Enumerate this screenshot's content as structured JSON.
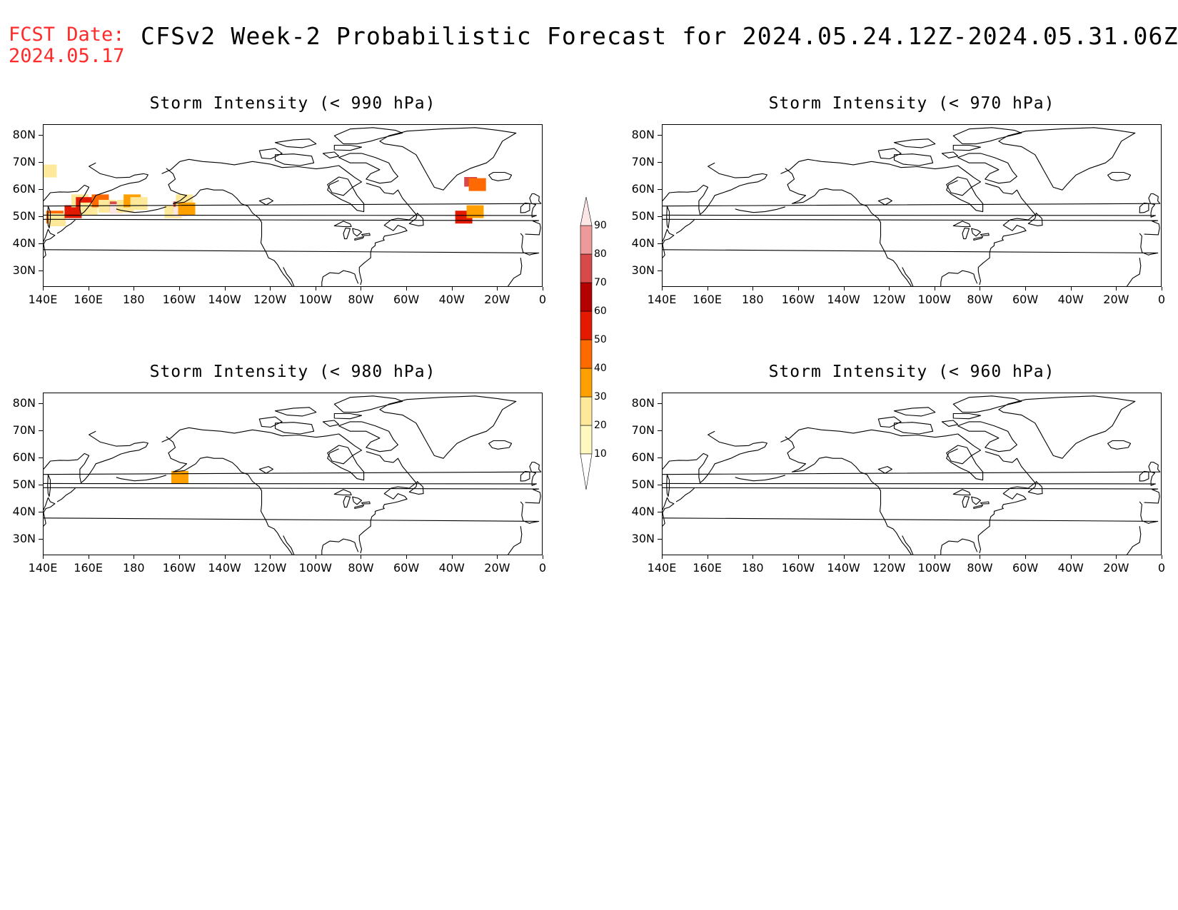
{
  "header": {
    "fcst_label": "FCST Date:",
    "fcst_date": "2024.05.17",
    "title": "CFSv2 Week-2 Probabilistic Forecast for 2024.05.24.12Z-2024.05.31.06Z"
  },
  "axes": {
    "lat_labels": [
      "80N",
      "70N",
      "60N",
      "50N",
      "40N",
      "30N"
    ],
    "lon_labels": [
      "140E",
      "160E",
      "180",
      "160W",
      "140W",
      "120W",
      "100W",
      "80W",
      "60W",
      "40W",
      "20W",
      "0"
    ]
  },
  "panels": [
    {
      "title": "Storm Intensity (< 990 hPa)"
    },
    {
      "title": "Storm Intensity (< 970 hPa)"
    },
    {
      "title": "Storm Intensity (< 980 hPa)"
    },
    {
      "title": "Storm Intensity (< 960 hPa)"
    }
  ],
  "colorbar": {
    "levels": [
      "10",
      "20",
      "30",
      "40",
      "50",
      "60",
      "70",
      "80",
      "90"
    ],
    "colors": [
      "#fff9c0",
      "#fee89a",
      "#ffa000",
      "#ff6a00",
      "#e31a00",
      "#b40000",
      "#d84a4a",
      "#ef9a9a",
      "#fde6e6"
    ]
  },
  "map_fills": {
    "panel_990": [
      {
        "lon": 145,
        "lat": 50,
        "prob": 40
      },
      {
        "lon": 146,
        "lat": 49,
        "prob": 20
      },
      {
        "lon": 142,
        "lat": 67,
        "prob": 20
      },
      {
        "lon": 153,
        "lat": 52,
        "prob": 50
      },
      {
        "lon": 156,
        "lat": 56,
        "prob": 20
      },
      {
        "lon": 158,
        "lat": 55,
        "prob": 50
      },
      {
        "lon": 160,
        "lat": 53,
        "prob": 20
      },
      {
        "lon": 165,
        "lat": 56,
        "prob": 40
      },
      {
        "lon": 168,
        "lat": 54,
        "prob": 20
      },
      {
        "lon": 172,
        "lat": 54,
        "prob": 70
      },
      {
        "lon": 172,
        "lat": 53,
        "prob": 90
      },
      {
        "lon": 176,
        "lat": 54,
        "prob": 20
      },
      {
        "lon": 179,
        "lat": 56,
        "prob": 30
      },
      {
        "lon": -178,
        "lat": 55,
        "prob": 20
      },
      {
        "lon": -163,
        "lat": 52,
        "prob": 20
      },
      {
        "lon": -160,
        "lat": 54,
        "prob": 70
      },
      {
        "lon": -160,
        "lat": 52,
        "prob": 90
      },
      {
        "lon": -158,
        "lat": 56,
        "prob": 20
      },
      {
        "lon": -157,
        "lat": 53,
        "prob": 30
      },
      {
        "lon": -32,
        "lat": 63,
        "prob": 70
      },
      {
        "lon": -29,
        "lat": 62,
        "prob": 40
      },
      {
        "lon": -35,
        "lat": 50,
        "prob": 50
      },
      {
        "lon": -30,
        "lat": 52,
        "prob": 30
      }
    ],
    "panel_980": [
      {
        "lon": -160,
        "lat": 53,
        "prob": 30
      }
    ],
    "panel_970": [],
    "panel_960": []
  }
}
